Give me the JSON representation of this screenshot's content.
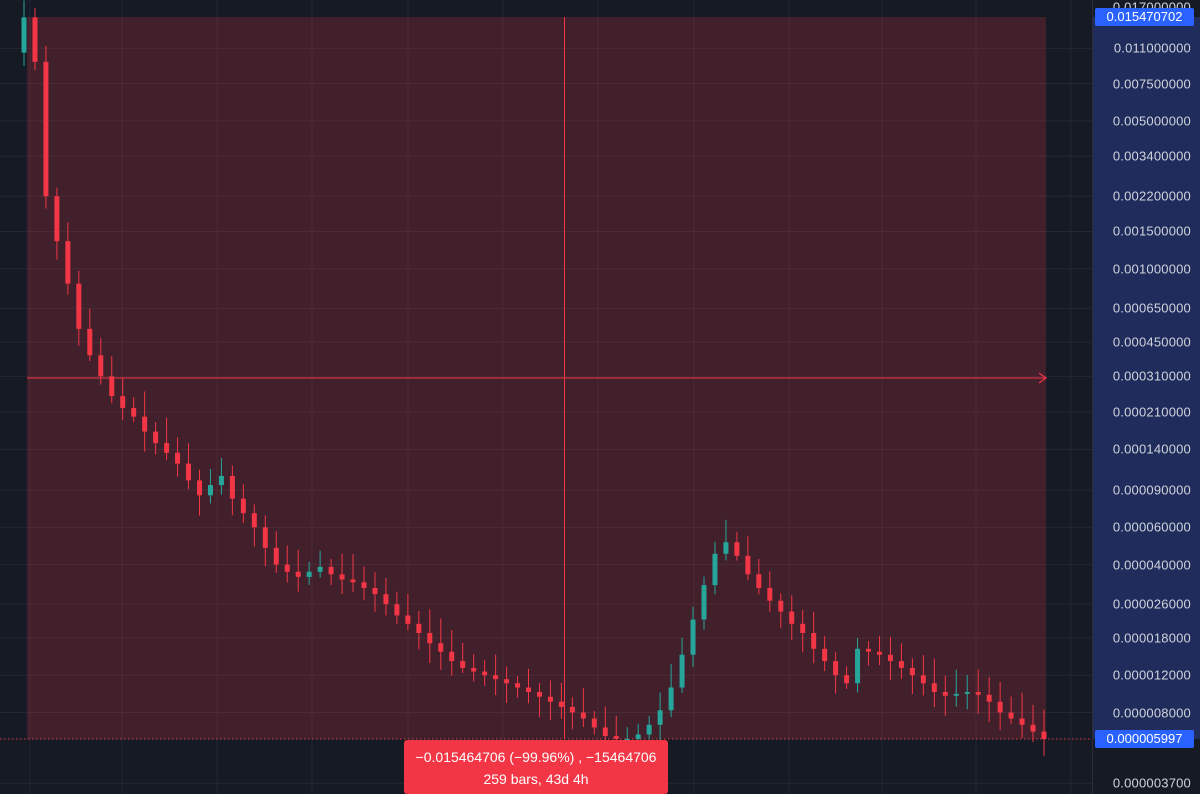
{
  "colors": {
    "background": "#161a25",
    "grid": "#232733",
    "up": "#26a69a",
    "down": "#f23645",
    "measure_fill": "rgba(242,54,69,0.20)",
    "measure_line": "#f23645",
    "price_tag": "#2962ff",
    "axis_text": "#d1d4dc"
  },
  "price_axis": {
    "top_partial_label": "0.017000000",
    "tick_labels": [
      "0.011000000",
      "0.007500000",
      "0.005000000",
      "0.003400000",
      "0.002200000",
      "0.001500000",
      "0.001000000",
      "0.000650000",
      "0.000450000",
      "0.000310000",
      "0.000210000",
      "0.000140000",
      "0.000090000",
      "0.000060000",
      "0.000040000",
      "0.000026000",
      "0.000018000",
      "0.000012000",
      "0.000008000",
      "0.000003700"
    ],
    "start_price_tag": "0.015470702",
    "current_price_tag": "0.000005997"
  },
  "measure_tooltip": {
    "line1": "−0.015464706 (−99.96%) , −15464706",
    "line2": "259 bars, 43d 4h"
  },
  "chart_data": {
    "type": "line",
    "title": "",
    "xlabel": "",
    "ylabel": "",
    "y_scale": "log",
    "grid": true,
    "legend": "none",
    "bars_in_range": 259,
    "measure": {
      "start_price": 0.015470702,
      "end_price": 5.997e-06,
      "change": -0.015464706,
      "change_percent": -99.96,
      "ticks": -15464706,
      "bars": 259,
      "duration": "43d 4h"
    },
    "series": [
      {
        "values": [
          0.0154,
          0.0095,
          0.0022,
          0.00135,
          0.00085,
          0.00052,
          0.00039,
          0.00031,
          0.00025,
          0.00022,
          0.0002,
          0.00017,
          0.00015,
          0.000135,
          0.00012,
          0.0001,
          8.5e-05,
          9.5e-05,
          0.000105,
          8.2e-05,
          7e-05,
          6e-05,
          4.8e-05,
          4e-05,
          3.7e-05,
          3.5e-05,
          3.7e-05,
          3.9e-05,
          3.6e-05,
          3.4e-05,
          3.3e-05,
          3.1e-05,
          2.9e-05,
          2.6e-05,
          2.3e-05,
          2.1e-05,
          1.9e-05,
          1.7e-05,
          1.55e-05,
          1.4e-05,
          1.3e-05,
          1.25e-05,
          1.2e-05,
          1.15e-05,
          1.1e-05,
          1.05e-05,
          1e-05,
          9.5e-06,
          9e-06,
          8.5e-06,
          8e-06,
          7.5e-06,
          6.8e-06,
          6.2e-06,
          6e-06,
          6e-06,
          6.3e-06,
          7e-06,
          8.2e-06,
          1.05e-05,
          1.5e-05,
          2.2e-05,
          3.2e-05,
          4.5e-05,
          5.1e-05,
          4.4e-05,
          3.6e-05,
          3.1e-05,
          2.7e-05,
          2.4e-05,
          2.1e-05,
          1.9e-05,
          1.6e-05,
          1.4e-05,
          1.2e-05,
          1.1e-05,
          1.6e-05,
          1.55e-05,
          1.5e-05,
          1.4e-05,
          1.3e-05,
          1.2e-05,
          1.1e-05,
          1e-05,
          9.6e-06,
          9.8e-06,
          1e-05,
          9.7e-06,
          9e-06,
          8e-06,
          7.5e-06,
          7e-06,
          6.5e-06,
          6e-06
        ]
      }
    ]
  }
}
